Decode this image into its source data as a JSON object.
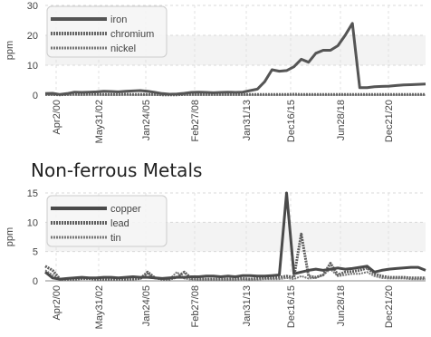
{
  "section_title": "Non-ferrous Metals",
  "chart_data": [
    {
      "type": "line",
      "title": "",
      "xlabel": "",
      "ylabel": "ppm",
      "ylim": [
        0,
        30
      ],
      "yticks": [
        0,
        10,
        20,
        30
      ],
      "grid": true,
      "legend_position": "top-left",
      "x_tick_labels": [
        "Apr2/00",
        "May31/02",
        "Jan24/05",
        "Feb27/08",
        "Jan31/13",
        "Dec16/15",
        "Jun28/18",
        "Dec21/20"
      ],
      "x": [
        "Apr2/00",
        "Jun/00",
        "Nov/00",
        "Mar/01",
        "Aug/01",
        "Jan/02",
        "May31/02",
        "Oct/02",
        "Feb/03",
        "Jul/03",
        "Dec/03",
        "Apr/04",
        "Sep/04",
        "Jan24/05",
        "May/05",
        "Oct/05",
        "Mar/06",
        "Jul/06",
        "Dec/06",
        "May/07",
        "Sep/07",
        "Feb27/08",
        "Jul/08",
        "Dec/08",
        "Apr/09",
        "Sep/09",
        "Jan/10",
        "Jun/10",
        "Nov/10",
        "Mar/11",
        "Aug/11",
        "Jan/12",
        "Jun/12",
        "Jan31/13",
        "Jun/13",
        "Nov/13",
        "May/14",
        "Nov/14",
        "Jun/15",
        "Dec16/15",
        "Jun/16",
        "Jan/17",
        "Jul/17",
        "Jan/18",
        "Jun28/18",
        "Jan/19",
        "Jul/19",
        "Jan/20",
        "Jul/20",
        "Dec21/20",
        "Jun/21",
        "Dec/21",
        "Jun/22"
      ],
      "series": [
        {
          "name": "iron",
          "color": "#555555",
          "style": "solid",
          "values": [
            0.5,
            0.6,
            0.2,
            0.5,
            1.0,
            0.9,
            1.0,
            1.1,
            1.3,
            1.2,
            1.1,
            1.3,
            1.4,
            1.5,
            1.3,
            0.9,
            0.5,
            0.3,
            0.4,
            0.6,
            0.9,
            1.0,
            0.9,
            0.8,
            0.9,
            1.0,
            0.9,
            1.0,
            1.5,
            2.0,
            4.5,
            8.5,
            8.0,
            8.2,
            9.5,
            12.0,
            11.0,
            14.0,
            15.0,
            15.0,
            16.5,
            20.0,
            24.0,
            2.5,
            2.5,
            2.8,
            2.9,
            3.0,
            3.2,
            3.4,
            3.5,
            3.6,
            3.7
          ]
        },
        {
          "name": "chromium",
          "color": "#666666",
          "style": "dotted",
          "values": [
            0.2,
            0.2,
            0.1,
            0.2,
            0.3,
            0.2,
            0.3,
            0.3,
            0.2,
            0.2,
            0.2,
            0.3,
            0.2,
            0.2,
            0.2,
            0.2,
            0.1,
            0.1,
            0.1,
            0.2,
            0.2,
            0.2,
            0.2,
            0.2,
            0.2,
            0.2,
            0.2,
            0.2,
            0.2,
            0.2,
            0.2,
            0.2,
            0.2,
            0.2,
            0.3,
            0.2,
            0.2,
            0.2,
            0.2,
            0.2,
            0.2,
            0.2,
            0.2,
            0.2,
            0.2,
            0.2,
            0.2,
            0.2,
            0.2,
            0.2,
            0.2,
            0.2,
            0.2
          ]
        },
        {
          "name": "nickel",
          "color": "#777777",
          "style": "dotted",
          "values": [
            0.1,
            0.1,
            0.1,
            0.1,
            0.1,
            0.1,
            0.1,
            0.1,
            0.1,
            0.1,
            0.1,
            0.1,
            0.1,
            0.1,
            0.1,
            0.1,
            0.1,
            0.1,
            0.1,
            0.1,
            0.1,
            0.1,
            0.1,
            0.1,
            0.1,
            0.1,
            0.1,
            0.1,
            0.1,
            0.1,
            0.1,
            0.1,
            0.1,
            0.1,
            0.1,
            0.1,
            0.1,
            0.1,
            0.1,
            0.1,
            0.1,
            0.1,
            0.1,
            0.1,
            0.1,
            0.1,
            0.1,
            0.1,
            0.1,
            0.1,
            0.1,
            0.1,
            0.1
          ]
        }
      ]
    },
    {
      "type": "line",
      "title": "Non-ferrous Metals",
      "xlabel": "",
      "ylabel": "ppm",
      "ylim": [
        0,
        15
      ],
      "yticks": [
        0,
        5,
        10,
        15
      ],
      "grid": true,
      "legend_position": "top-left",
      "x_tick_labels": [
        "Apr2/00",
        "May31/02",
        "Jan24/05",
        "Feb27/08",
        "Jan31/13",
        "Dec16/15",
        "Jun28/18",
        "Dec21/20"
      ],
      "x": [
        "Apr2/00",
        "Jun/00",
        "Nov/00",
        "Mar/01",
        "Aug/01",
        "Jan/02",
        "May31/02",
        "Oct/02",
        "Feb/03",
        "Jul/03",
        "Dec/03",
        "Apr/04",
        "Sep/04",
        "Jan24/05",
        "May/05",
        "Oct/05",
        "Mar/06",
        "Jul/06",
        "Dec/06",
        "May/07",
        "Sep/07",
        "Feb27/08",
        "Jul/08",
        "Dec/08",
        "Apr/09",
        "Sep/09",
        "Jan/10",
        "Jun/10",
        "Nov/10",
        "Mar/11",
        "Aug/11",
        "Jan/12",
        "Jun/12",
        "Jan31/13",
        "Jun/13",
        "Nov/13",
        "May/14",
        "Nov/14",
        "Jun/15",
        "Dec16/15",
        "Jun/16",
        "Jan/17",
        "Jul/17",
        "Jan/18",
        "Jun28/18",
        "Jan/19",
        "Jul/19",
        "Jan/20",
        "Jul/20",
        "Dec21/20",
        "Jun/21",
        "Dec/21",
        "Jun/22"
      ],
      "series": [
        {
          "name": "copper",
          "color": "#4a4a4a",
          "style": "solid",
          "values": [
            1.5,
            0.5,
            0.3,
            0.4,
            0.5,
            0.6,
            0.5,
            0.5,
            0.6,
            0.6,
            0.5,
            0.6,
            0.7,
            0.6,
            0.6,
            0.5,
            0.4,
            0.5,
            0.6,
            0.6,
            0.7,
            0.7,
            0.8,
            0.8,
            0.7,
            0.8,
            0.7,
            0.9,
            0.9,
            0.8,
            0.8,
            0.9,
            1.0,
            15.0,
            1.2,
            1.5,
            1.8,
            2.0,
            1.8,
            2.0,
            2.2,
            2.0,
            2.1,
            2.3,
            2.5,
            1.5,
            1.8,
            2.0,
            2.1,
            2.2,
            2.3,
            2.3,
            1.8
          ]
        },
        {
          "name": "lead",
          "color": "#606060",
          "style": "dotted",
          "values": [
            2.5,
            1.8,
            0.3,
            0.3,
            0.3,
            0.4,
            0.4,
            0.3,
            0.3,
            0.3,
            0.3,
            0.3,
            0.3,
            0.4,
            1.5,
            0.5,
            0.3,
            0.3,
            0.6,
            1.5,
            0.4,
            0.3,
            0.3,
            0.3,
            0.3,
            0.3,
            0.3,
            0.4,
            0.3,
            0.4,
            0.5,
            0.5,
            0.6,
            0.8,
            0.6,
            8.0,
            0.8,
            0.6,
            1.0,
            3.0,
            1.0,
            1.5,
            1.6,
            1.8,
            2.2,
            1.2,
            0.8,
            0.6,
            0.6,
            0.6,
            0.5,
            0.5,
            0.5
          ]
        },
        {
          "name": "tin",
          "color": "#7a7a7a",
          "style": "dotted",
          "values": [
            1.8,
            1.0,
            0.2,
            0.2,
            0.2,
            0.3,
            0.3,
            0.2,
            0.2,
            0.2,
            0.2,
            0.2,
            0.3,
            0.3,
            1.2,
            0.4,
            0.3,
            0.3,
            1.5,
            0.4,
            0.2,
            0.2,
            0.2,
            0.2,
            0.2,
            0.2,
            0.2,
            0.2,
            0.2,
            0.2,
            0.3,
            0.3,
            0.3,
            0.5,
            0.3,
            0.8,
            0.4,
            0.5,
            1.0,
            2.0,
            0.8,
            1.0,
            1.2,
            1.2,
            1.5,
            0.8,
            0.5,
            0.4,
            0.4,
            0.4,
            0.3,
            0.3,
            0.3
          ]
        }
      ]
    }
  ]
}
